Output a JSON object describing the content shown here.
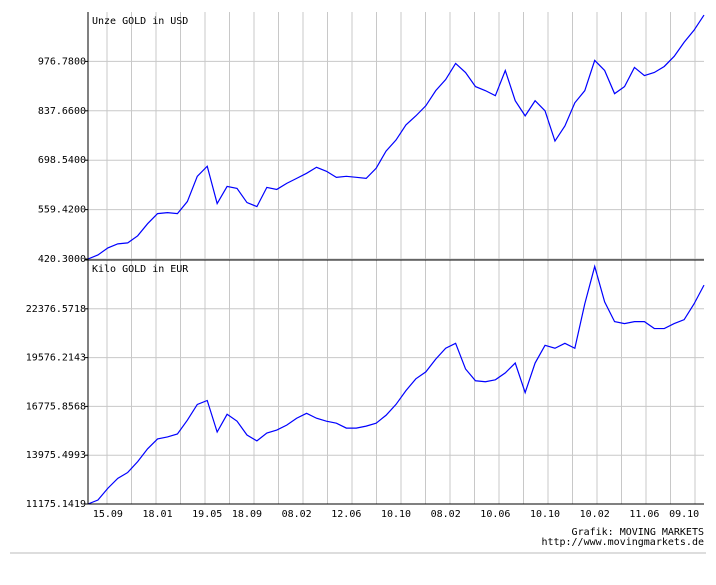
{
  "chart_data": [
    {
      "type": "line",
      "title": "Unze GOLD in USD",
      "ylim": [
        420.3,
        1115.9
      ],
      "yticks": [
        {
          "value": 420.3,
          "label": "420.3000"
        },
        {
          "value": 559.42,
          "label": "559.4200"
        },
        {
          "value": 698.54,
          "label": "698.5400"
        },
        {
          "value": 837.66,
          "label": "837.6600"
        },
        {
          "value": 976.78,
          "label": "976.7800"
        }
      ],
      "series": [
        {
          "color": "#0000ff",
          "values": [
            420.3,
            431.7,
            451.5,
            462.9,
            465.7,
            485.6,
            519.7,
            548.1,
            550.9,
            548.1,
            582.1,
            653.1,
            681.5,
            576.4,
            624.7,
            619.0,
            579.3,
            567.9,
            621.9,
            616.2,
            633.2,
            647.4,
            661.6,
            678.6,
            667.3,
            650.3,
            653.1,
            650.3,
            647.4,
            675.8,
            724.1,
            755.3,
            797.9,
            823.4,
            851.8,
            894.4,
            925.6,
            971.1,
            945.5,
            905.8,
            894.4,
            880.2,
            951.2,
            866.0,
            823.4,
            866.0,
            837.6,
            752.5,
            795.0,
            860.3,
            894.4,
            979.6,
            951.2,
            885.9,
            905.8,
            959.7,
            937.0,
            945.5,
            962.5,
            991.0,
            1030.7,
            1064.8,
            1107.3
          ]
        }
      ],
      "grid": true
    },
    {
      "type": "line",
      "title": "Kilo GOLD in EUR",
      "categories": [
        null,
        null,
        "15.09",
        null,
        null,
        null,
        null,
        "18.01",
        null,
        null,
        null,
        null,
        "19.05",
        null,
        null,
        null,
        "18.09",
        null,
        null,
        null,
        null,
        "08.02",
        null,
        null,
        null,
        null,
        "12.06",
        null,
        null,
        null,
        null,
        "10.10",
        null,
        null,
        null,
        null,
        "08.02",
        null,
        null,
        null,
        null,
        "10.06",
        null,
        null,
        null,
        null,
        "10.10",
        null,
        null,
        null,
        null,
        "10.02",
        null,
        null,
        null,
        null,
        "11.06",
        null,
        null,
        null,
        "09.10",
        null,
        null
      ],
      "ylim": [
        11175.1419,
        25176.9293
      ],
      "yticks": [
        11175.1419,
        13975.4993,
        16775.8568,
        19576.2143,
        22376.5718
      ],
      "series": [
        {
          "color": "#0000ff",
          "values": [
            11175,
            11401,
            12080,
            12646,
            12985,
            13608,
            14343,
            14909,
            15022,
            15192,
            15984,
            16889,
            17115,
            15305,
            16323,
            15927,
            15135,
            14796,
            15248,
            15418,
            15701,
            16097,
            16380,
            16097,
            15927,
            15814,
            15531,
            15531,
            15644,
            15814,
            16266,
            16889,
            17681,
            18359,
            18755,
            19491,
            20113,
            20396,
            18925,
            18246,
            18190,
            18303,
            18699,
            19265,
            17567,
            19265,
            20283,
            20113,
            20396,
            20113,
            22659,
            24808,
            22772,
            21640,
            21527,
            21640,
            21640,
            21244,
            21244,
            21527,
            21753,
            22659,
            23734
          ]
        }
      ],
      "grid": true
    }
  ],
  "footer": {
    "credit": "Grafik: MOVING MARKETS",
    "url": "http://www.movingmarkets.de"
  }
}
